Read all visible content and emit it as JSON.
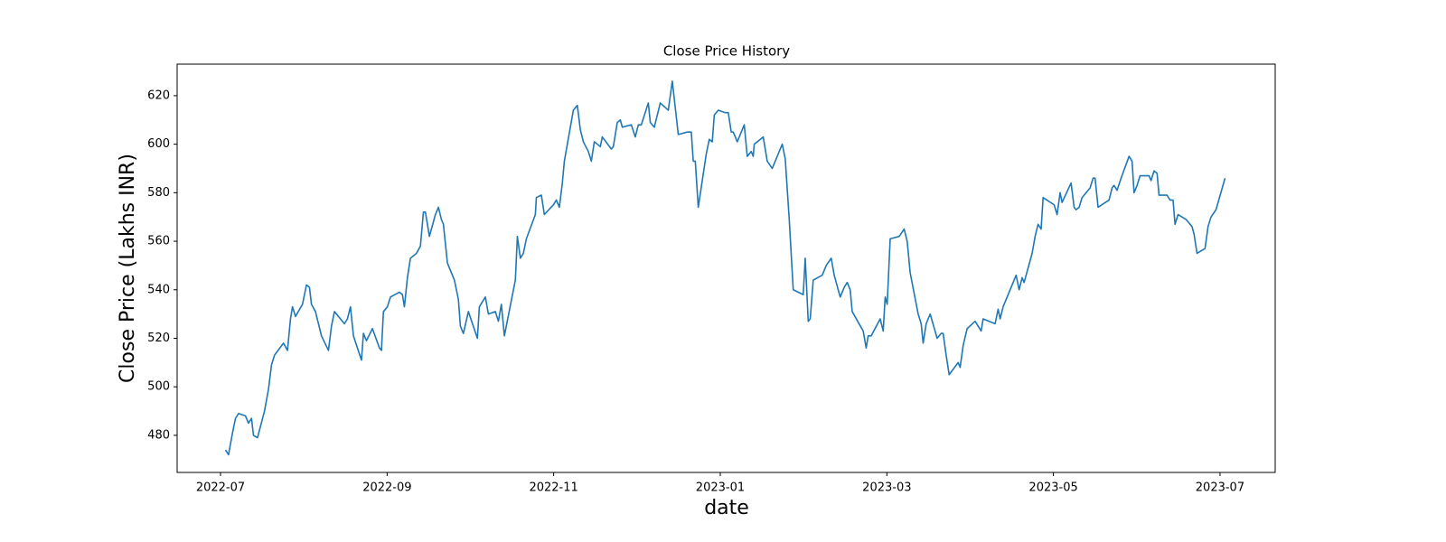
{
  "chart_data": {
    "type": "line",
    "title": "Close Price History",
    "xlabel": "date",
    "ylabel": "Close Price (Lakhs INR)",
    "color": "#1f77b4",
    "x": [
      2022.505,
      2022.508,
      2022.512,
      2022.515,
      2022.518,
      2022.525,
      2022.528,
      2022.531,
      2022.533,
      2022.537,
      2022.544,
      2022.548,
      2022.551,
      2022.554,
      2022.563,
      2022.567,
      2022.57,
      2022.572,
      2022.575,
      2022.582,
      2022.586,
      2022.589,
      2022.591,
      2022.595,
      2022.601,
      2022.608,
      2022.611,
      2022.614,
      2022.624,
      2022.627,
      2022.63,
      2022.633,
      2022.641,
      2022.643,
      2022.646,
      2022.652,
      2022.659,
      2022.661,
      2022.663,
      2022.667,
      2022.67,
      2022.679,
      2022.682,
      2022.684,
      2022.687,
      2022.69,
      2022.696,
      2022.7,
      2022.703,
      2022.705,
      2022.709,
      2022.715,
      2022.718,
      2022.721,
      2022.723,
      2022.727,
      2022.734,
      2022.738,
      2022.74,
      2022.743,
      2022.748,
      2022.757,
      2022.759,
      2022.765,
      2022.768,
      2022.775,
      2022.778,
      2022.781,
      2022.784,
      2022.795,
      2022.797,
      2022.8,
      2022.803,
      2022.806,
      2022.815,
      2022.816,
      2022.821,
      2022.824,
      2022.833,
      2022.836,
      2022.839,
      2022.842,
      2022.844,
      2022.853,
      2022.857,
      2022.86,
      2022.863,
      2022.868,
      2022.871,
      2022.874,
      2022.88,
      2022.882,
      2022.891,
      2022.893,
      2022.897,
      2022.9,
      2022.902,
      2022.911,
      2022.915,
      2022.918,
      2022.921,
      2022.928,
      2022.93,
      2022.934,
      2022.94,
      2022.948,
      2022.952,
      2022.958,
      2022.967,
      2022.971,
      2022.973,
      2022.975,
      2022.978,
      2022.986,
      2022.989,
      2022.992,
      2022.994,
      2022.998,
      2023.005,
      2023.008,
      2023.011,
      2023.013,
      2023.017,
      2023.024,
      2023.027,
      2023.031,
      2023.033,
      2023.034,
      2023.043,
      2023.047,
      2023.052,
      2023.062,
      2023.065,
      2023.069,
      2023.073,
      2023.083,
      2023.085,
      2023.088,
      2023.09,
      2023.093,
      2023.102,
      2023.106,
      2023.111,
      2023.114,
      2023.12,
      2023.124,
      2023.127,
      2023.13,
      2023.132,
      2023.143,
      2023.146,
      2023.148,
      2023.151,
      2023.16,
      2023.163,
      2023.165,
      2023.167,
      2023.17,
      2023.179,
      2023.184,
      2023.187,
      2023.19,
      2023.198,
      2023.201,
      2023.203,
      2023.206,
      2023.21,
      2023.217,
      2023.221,
      2023.223,
      2023.226,
      2023.229,
      2023.238,
      2023.24,
      2023.243,
      2023.247,
      2023.255,
      2023.261,
      2023.263,
      2023.275,
      2023.278,
      2023.28,
      2023.283,
      2023.294,
      2023.296,
      2023.299,
      2023.302,
      2023.304,
      2023.312,
      2023.315,
      2023.318,
      2023.321,
      2023.323,
      2023.334,
      2023.337,
      2023.34,
      2023.342,
      2023.351,
      2023.354,
      2023.356,
      2023.359,
      2023.362,
      2023.37,
      2023.373,
      2023.375,
      2023.378,
      2023.389,
      2023.392,
      2023.394,
      2023.397,
      2023.401,
      2023.409,
      2023.412,
      2023.414,
      2023.417,
      2023.42,
      2023.429,
      2023.431,
      2023.434,
      2023.437,
      2023.439,
      2023.447,
      2023.45,
      2023.453,
      2023.455,
      2023.458,
      2023.466,
      2023.472,
      2023.474,
      2023.477,
      2023.485,
      2023.488,
      2023.491,
      2023.496,
      2023.505
    ],
    "values": [
      474,
      472,
      481,
      487,
      489,
      488,
      485,
      487,
      480,
      479,
      490,
      499,
      509,
      513,
      518,
      515,
      528,
      533,
      529,
      534,
      542,
      541,
      534,
      531,
      521,
      515,
      525,
      531,
      526,
      528,
      533,
      521,
      511,
      522,
      519,
      524,
      516,
      515,
      531,
      533,
      537,
      539,
      538,
      533,
      545,
      553,
      555,
      558,
      572,
      572,
      562,
      571,
      574,
      569,
      567,
      551,
      544,
      536,
      525,
      522,
      531,
      520,
      533,
      537,
      530,
      531,
      527,
      534,
      521,
      544,
      562,
      553,
      555,
      561,
      571,
      578,
      579,
      571,
      575,
      577,
      574,
      584,
      593,
      614,
      616,
      606,
      601,
      597,
      593,
      601,
      599,
      603,
      598,
      599,
      609,
      610,
      607,
      608,
      603,
      608,
      608,
      617,
      609,
      607,
      617,
      614,
      626,
      604,
      605,
      605,
      593,
      593,
      574,
      596,
      602,
      601,
      612,
      614,
      613,
      613,
      605,
      605,
      601,
      608,
      595,
      597,
      595,
      600,
      603,
      593,
      590,
      600,
      594,
      569,
      540,
      538,
      553,
      527,
      528,
      544,
      546,
      550,
      553,
      546,
      537,
      541,
      543,
      540,
      531,
      523,
      516,
      521,
      521,
      528,
      523,
      537,
      534,
      561,
      562,
      565,
      560,
      547,
      530,
      526,
      518,
      526,
      530,
      520,
      522,
      522,
      513,
      505,
      510,
      508,
      517,
      524,
      527,
      523,
      528,
      526,
      532,
      528,
      533,
      544,
      546,
      540,
      545,
      543,
      555,
      562,
      567,
      565,
      578,
      575,
      571,
      580,
      576,
      584,
      574,
      573,
      574,
      578,
      582,
      586,
      586,
      574,
      577,
      582,
      583,
      581,
      586,
      595,
      593,
      580,
      583,
      587,
      587,
      585,
      589,
      588,
      579,
      579,
      577,
      577,
      567,
      571,
      569,
      566,
      563,
      555,
      557,
      566,
      570,
      573,
      586
    ],
    "xlim": [
      2022.4566,
      2023.5552
    ],
    "xticks": [
      {
        "value": 2022.5,
        "label": "2022-07"
      },
      {
        "value": 2022.6667,
        "label": "2022-09"
      },
      {
        "value": 2022.8333,
        "label": "2022-11"
      },
      {
        "value": 2023.0,
        "label": "2023-01"
      },
      {
        "value": 2023.1667,
        "label": "2023-03"
      },
      {
        "value": 2023.3333,
        "label": "2023-05"
      },
      {
        "value": 2023.5,
        "label": "2023-07"
      }
    ],
    "ylim": [
      464.7,
      633.0
    ],
    "yticks": [
      480,
      500,
      520,
      540,
      560,
      580,
      600,
      620
    ]
  }
}
